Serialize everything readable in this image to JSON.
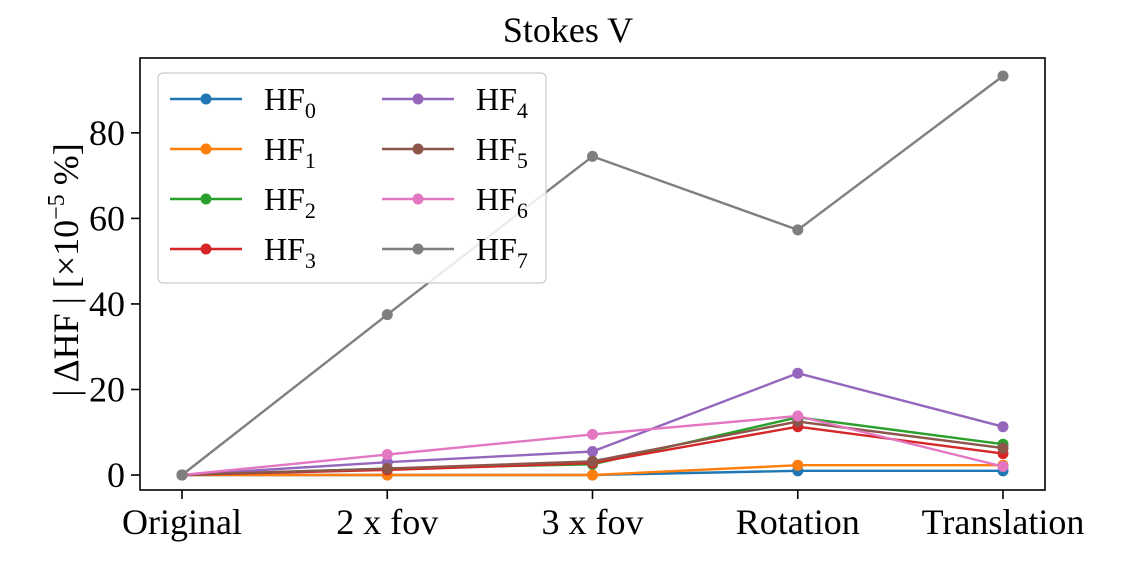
{
  "chart_data": {
    "type": "line",
    "title": "Stokes V",
    "xlabel": "",
    "ylabel": "| ΔHF | [×10",
    "ylabel_exponent": "−5",
    "ylabel_suffix": " %]",
    "categories": [
      "Original",
      "2 x fov",
      "3 x fov",
      "Rotation",
      "Translation"
    ],
    "ylim": [
      -3.5,
      97.5
    ],
    "yticks": [
      0,
      20,
      40,
      60,
      80
    ],
    "legend_placement": "upper-left",
    "grid": false,
    "series": [
      {
        "name": "HF",
        "sub": "0",
        "color": "#1f77b4",
        "values": [
          0,
          0,
          0,
          1,
          1
        ]
      },
      {
        "name": "HF",
        "sub": "1",
        "color": "#ff7f0e",
        "values": [
          0,
          0,
          0,
          2.3,
          2.3
        ]
      },
      {
        "name": "HF",
        "sub": "2",
        "color": "#2ca02c",
        "values": [
          0,
          1.5,
          2.5,
          13.5,
          7.2
        ]
      },
      {
        "name": "HF",
        "sub": "3",
        "color": "#d62728",
        "values": [
          0,
          1.2,
          2.8,
          11.3,
          5
        ]
      },
      {
        "name": "HF",
        "sub": "4",
        "color": "#9467bd",
        "values": [
          0,
          3,
          5.5,
          23.8,
          11.3
        ]
      },
      {
        "name": "HF",
        "sub": "5",
        "color": "#8c564b",
        "values": [
          0,
          1.5,
          3.2,
          12.5,
          6.3
        ]
      },
      {
        "name": "HF",
        "sub": "6",
        "color": "#e377c2",
        "values": [
          0,
          4.8,
          9.5,
          13.8,
          2
        ]
      },
      {
        "name": "HF",
        "sub": "7",
        "color": "#7f7f7f",
        "values": [
          0,
          37.5,
          74.5,
          57.3,
          93.3
        ]
      }
    ]
  }
}
